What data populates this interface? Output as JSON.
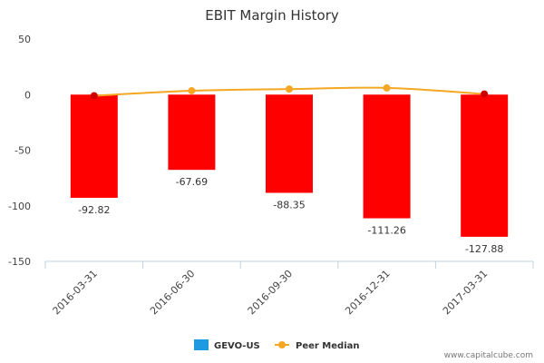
{
  "chart_data": {
    "type": "bar",
    "title": "EBIT Margin History",
    "categories": [
      "2016-03-31",
      "2016-06-30",
      "2016-09-30",
      "2016-12-31",
      "2017-03-31"
    ],
    "series": [
      {
        "name": "GEVO-US",
        "type": "bar",
        "values": [
          -92.82,
          -67.69,
          -88.35,
          -111.26,
          -127.88
        ],
        "color": "#ff0000",
        "legend_color": "#1e9ae0",
        "data_labels": [
          "-92.82",
          "-67.69",
          "-88.35",
          "-111.26",
          "-127.88"
        ]
      },
      {
        "name": "Peer Median",
        "type": "line",
        "values": [
          -1,
          3.5,
          5,
          6,
          0.5
        ],
        "color": "#f5a623",
        "endpoint_color": "#cc0000"
      }
    ],
    "yticks": [
      "50",
      "0",
      "-50",
      "-100",
      "-150"
    ],
    "ytick_values": [
      50,
      0,
      -50,
      -100,
      -150
    ],
    "ylim": [
      -150,
      50
    ],
    "grid": false,
    "legend": "bottom-center"
  },
  "credit": "www.capitalcube.com"
}
